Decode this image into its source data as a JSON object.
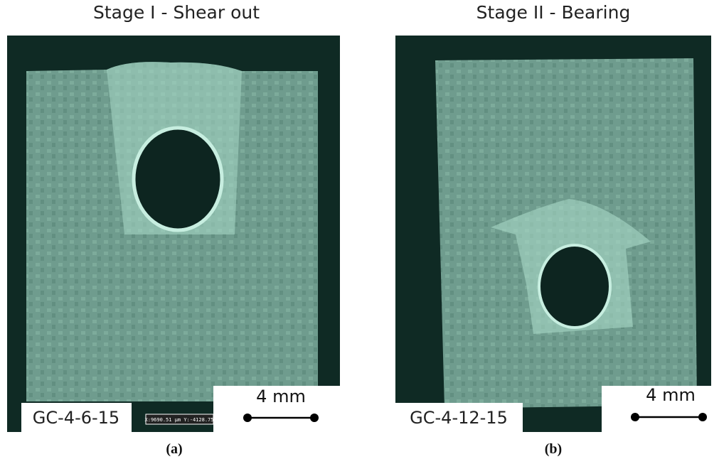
{
  "figure": {
    "panels": [
      {
        "title": "Stage I - Shear out",
        "specimen": "GC-4-6-15",
        "scale": "4 mm",
        "overlay": "X:9690.51 µm Y:-4128.75",
        "caption": "(a)"
      },
      {
        "title": "Stage II - Bearing",
        "specimen": "GC-4-12-15",
        "scale": "4 mm",
        "caption": "(b)"
      }
    ]
  }
}
